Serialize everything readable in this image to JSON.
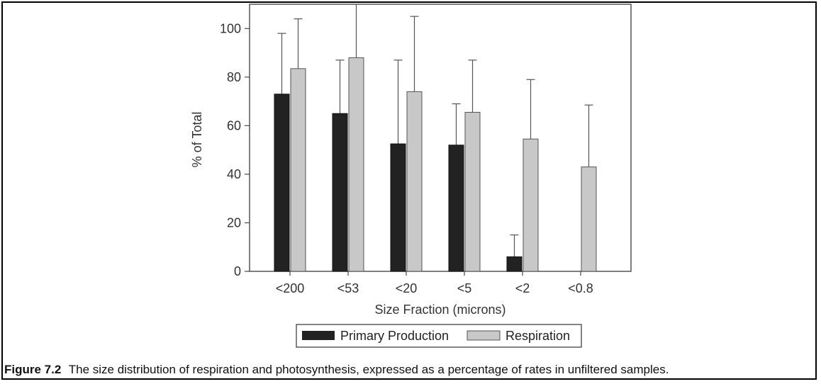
{
  "chart_data": {
    "type": "bar",
    "xlabel": "Size Fraction (microns)",
    "ylabel": "% of Total",
    "ylim": [
      0,
      110
    ],
    "yticks": [
      0,
      20,
      40,
      60,
      80,
      100
    ],
    "categories": [
      "<200",
      "<53",
      "<20",
      "<5",
      "<2",
      "<0.8"
    ],
    "series": [
      {
        "name": "Primary Production",
        "color": "#222222",
        "values": [
          73,
          65,
          52.5,
          52,
          6,
          null
        ],
        "error_upper": [
          98,
          87,
          87,
          69,
          15,
          null
        ]
      },
      {
        "name": "Respiration",
        "color": "#c8c8c8",
        "values": [
          83.5,
          88,
          74,
          65.5,
          54.5,
          43
        ],
        "error_upper": [
          104,
          111,
          105,
          87,
          79,
          68.5
        ]
      }
    ],
    "legend_position": "bottom-center",
    "grid": false
  },
  "caption": {
    "label": "Figure 7.2",
    "text": "The size distribution of respiration and photosynthesis, expressed as a percentage of rates in unfiltered samples."
  }
}
